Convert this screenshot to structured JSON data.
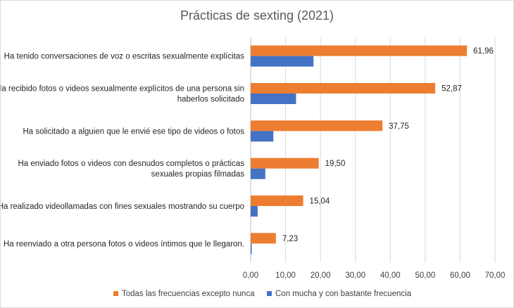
{
  "chart_data": {
    "type": "bar",
    "orientation": "horizontal",
    "title": "Prácticas de sexting (2021)",
    "xlabel": "",
    "ylabel": "",
    "xlim": [
      0,
      70
    ],
    "xticks": [
      "0,00",
      "10,00",
      "20,00",
      "30,00",
      "40,00",
      "50,00",
      "60,00",
      "70,00"
    ],
    "grid": true,
    "legend_position": "bottom",
    "categories": [
      [
        "Ha tenido conversaciones de voz o escritas sexualmente explícitas"
      ],
      [
        "Ha recibido fotos o videos sexualmente explícitos de una persona sin",
        "haberlos solicitado"
      ],
      [
        "Ha solicitado a alguien que le envié ese tipo de videos o fotos"
      ],
      [
        "Ha enviado fotos o videos con desnudos completos o prácticas",
        "sexuales propias filmadas"
      ],
      [
        "Ha realizado videollamadas con fines sexuales mostrando su cuerpo"
      ],
      [
        "Ha reenviado a otra persona fotos o videos íntimos que le llegaron."
      ]
    ],
    "series": [
      {
        "name": "Todas las frecuencias excepto nunca",
        "color": "#ED7D31",
        "values": [
          61.96,
          52.87,
          37.75,
          19.5,
          15.04,
          7.23
        ],
        "labels": [
          "61,96",
          "52,87",
          "37,75",
          "19,50",
          "15,04",
          "7,23"
        ]
      },
      {
        "name": "Con mucha y con bastante frecuencia",
        "color": "#4472C4",
        "values": [
          18.0,
          13.0,
          6.5,
          4.2,
          2.0,
          0.3
        ]
      }
    ]
  }
}
